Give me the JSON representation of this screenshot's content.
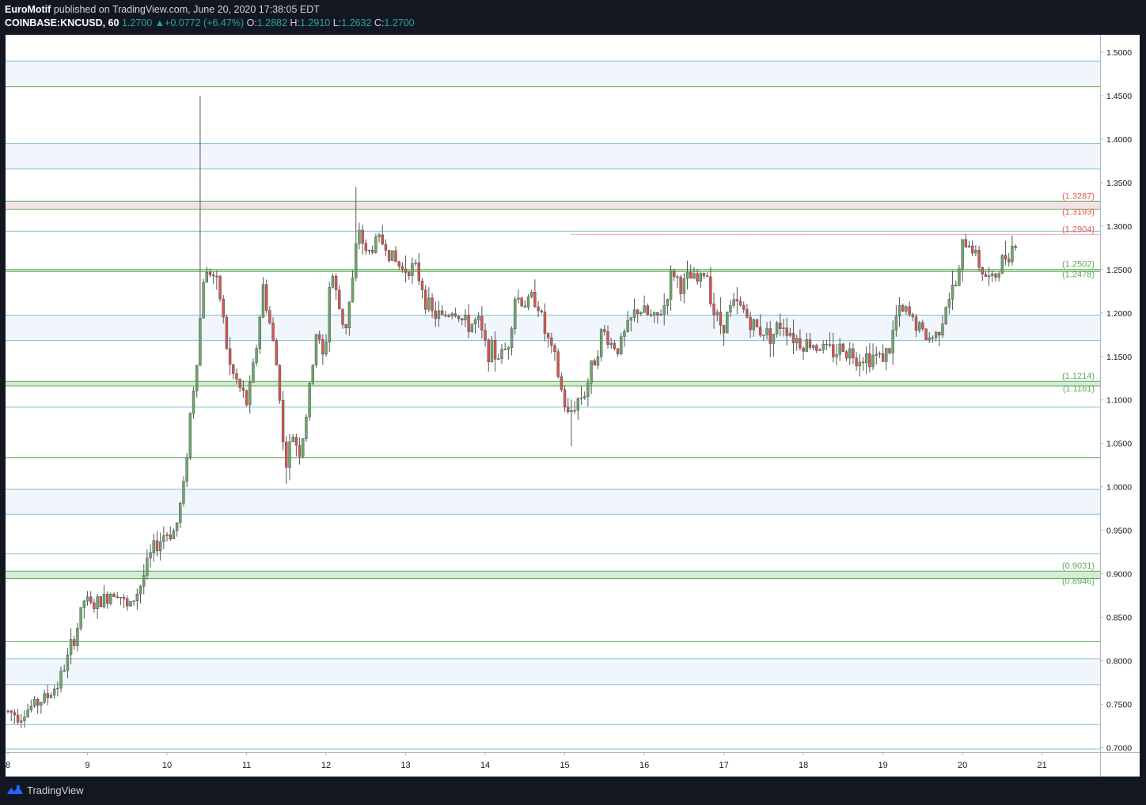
{
  "header": {
    "author": "EuroMotif",
    "published_text": "published on TradingView.com, June 20, 2020 17:38:05 EDT",
    "symbol": "COINBASE:KNCUSD, 60",
    "last": "1.2700",
    "change": "+0.0772 (+6.47%)",
    "o_label": "O:",
    "o_value": "1.2882",
    "h_label": "H:",
    "h_value": "1.2910",
    "l_label": "L:",
    "l_value": "1.2632",
    "c_label": "C:",
    "c_value": "1.2700"
  },
  "footer": {
    "brand": "TradingView",
    "logo_icon": "tradingview-logo-icon"
  },
  "colors": {
    "bull": "#26a69a",
    "bear": "#ef5350",
    "bull_body": "#6ca86a",
    "bear_body": "#d9534f",
    "hline_blue": "#7fbfd3",
    "hline_green": "#5fa858",
    "band_fill": "#f0f6fc",
    "zone_green": "#d4ecd3",
    "zone_red": "#efe3e3",
    "label_green": "#5fa858",
    "label_red": "#e05a54"
  },
  "chart_data": {
    "type": "candlestick",
    "symbol": "COINBASE:KNCUSD",
    "interval": "60",
    "ylim": [
      0.695,
      1.52
    ],
    "y_ticks": [
      "1.5000",
      "1.4500",
      "1.4000",
      "1.3500",
      "1.3000",
      "1.2500",
      "1.2000",
      "1.1500",
      "1.1000",
      "1.0500",
      "1.0000",
      "0.9500",
      "0.9000",
      "0.8500",
      "0.8000",
      "0.7500",
      "0.7000"
    ],
    "x_ticks": [
      {
        "label": "8",
        "day": 8
      },
      {
        "label": "9",
        "day": 9
      },
      {
        "label": "10",
        "day": 10
      },
      {
        "label": "11",
        "day": 11
      },
      {
        "label": "12",
        "day": 12
      },
      {
        "label": "13",
        "day": 13
      },
      {
        "label": "14",
        "day": 14
      },
      {
        "label": "15",
        "day": 15
      },
      {
        "label": "16",
        "day": 16
      },
      {
        "label": "17",
        "day": 17
      },
      {
        "label": "18",
        "day": 18
      },
      {
        "label": "19",
        "day": 19
      },
      {
        "label": "20",
        "day": 20
      },
      {
        "label": "21",
        "day": 21
      }
    ],
    "xlim_days": [
      7.97,
      21.73
    ],
    "green_lines": [
      1.4603,
      1.0336,
      0.822
    ],
    "blue_lines": [
      1.4897,
      1.3948,
      1.3656,
      1.2941,
      1.1975,
      1.1683,
      1.0917,
      0.9973,
      0.9686,
      0.9232,
      0.8024,
      0.7725,
      0.7266,
      0.6985
    ],
    "bands": [
      [
        1.4603,
        1.4897
      ],
      [
        1.3656,
        1.3948
      ],
      [
        1.1683,
        1.1975
      ],
      [
        0.9686,
        0.9973
      ],
      [
        0.7725,
        0.8024
      ]
    ],
    "zones": [
      {
        "top": 1.3287,
        "bottom": 1.3193,
        "color": "red",
        "labels": [
          "(1.3287)",
          "(1.3193)"
        ]
      },
      {
        "top": 1.2502,
        "bottom": 1.2478,
        "color": "green",
        "labels": [
          "(1.2502)",
          "(1.2478)"
        ]
      },
      {
        "top": 1.1214,
        "bottom": 1.1161,
        "color": "green",
        "labels": [
          "(1.1214)",
          "(1.1161)"
        ]
      },
      {
        "top": 0.9031,
        "bottom": 0.8946,
        "color": "green",
        "labels": [
          "(0.9031)",
          "(0.8946)"
        ]
      }
    ],
    "current_line": {
      "price": 1.2904,
      "label": "(1.2904)",
      "from_day": 15.08
    },
    "anchors": [
      [
        8.0,
        0.742
      ],
      [
        8.2,
        0.738
      ],
      [
        8.35,
        0.748
      ],
      [
        8.55,
        0.76
      ],
      [
        8.68,
        0.775
      ],
      [
        8.8,
        0.805
      ],
      [
        8.92,
        0.84
      ],
      [
        9.0,
        0.87
      ],
      [
        9.1,
        0.862
      ],
      [
        9.25,
        0.87
      ],
      [
        9.4,
        0.885
      ],
      [
        9.55,
        0.858
      ],
      [
        9.7,
        0.885
      ],
      [
        9.85,
        0.925
      ],
      [
        10.0,
        0.945
      ],
      [
        10.15,
        0.95
      ],
      [
        10.25,
        1.0
      ],
      [
        10.33,
        1.08
      ],
      [
        10.42,
        1.15
      ],
      [
        10.5,
        1.24
      ],
      [
        10.6,
        1.25
      ],
      [
        10.72,
        1.215
      ],
      [
        10.82,
        1.14
      ],
      [
        10.92,
        1.12
      ],
      [
        11.05,
        1.095
      ],
      [
        11.15,
        1.15
      ],
      [
        11.25,
        1.23
      ],
      [
        11.35,
        1.18
      ],
      [
        11.45,
        1.12
      ],
      [
        11.52,
        1.02
      ],
      [
        11.62,
        1.06
      ],
      [
        11.72,
        1.04
      ],
      [
        11.82,
        1.1
      ],
      [
        11.92,
        1.18
      ],
      [
        12.02,
        1.14
      ],
      [
        12.1,
        1.255
      ],
      [
        12.18,
        1.215
      ],
      [
        12.28,
        1.18
      ],
      [
        12.38,
        1.24
      ],
      [
        12.45,
        1.3
      ],
      [
        12.55,
        1.265
      ],
      [
        12.68,
        1.285
      ],
      [
        12.78,
        1.28
      ],
      [
        12.9,
        1.26
      ],
      [
        13.0,
        1.25
      ],
      [
        13.1,
        1.255
      ],
      [
        13.22,
        1.24
      ],
      [
        13.35,
        1.2
      ],
      [
        13.5,
        1.195
      ],
      [
        13.65,
        1.205
      ],
      [
        13.8,
        1.185
      ],
      [
        13.95,
        1.19
      ],
      [
        14.05,
        1.16
      ],
      [
        14.2,
        1.15
      ],
      [
        14.32,
        1.16
      ],
      [
        14.42,
        1.22
      ],
      [
        14.55,
        1.21
      ],
      [
        14.68,
        1.22
      ],
      [
        14.8,
        1.175
      ],
      [
        14.92,
        1.145
      ],
      [
        15.0,
        1.11
      ],
      [
        15.08,
        1.08
      ],
      [
        15.2,
        1.1
      ],
      [
        15.3,
        1.11
      ],
      [
        15.42,
        1.15
      ],
      [
        15.52,
        1.18
      ],
      [
        15.62,
        1.165
      ],
      [
        15.72,
        1.16
      ],
      [
        15.82,
        1.18
      ],
      [
        15.95,
        1.205
      ],
      [
        16.05,
        1.2
      ],
      [
        16.18,
        1.19
      ],
      [
        16.3,
        1.21
      ],
      [
        16.4,
        1.25
      ],
      [
        16.5,
        1.23
      ],
      [
        16.62,
        1.24
      ],
      [
        16.72,
        1.235
      ],
      [
        16.82,
        1.25
      ],
      [
        16.92,
        1.2
      ],
      [
        17.02,
        1.185
      ],
      [
        17.15,
        1.21
      ],
      [
        17.28,
        1.205
      ],
      [
        17.4,
        1.185
      ],
      [
        17.52,
        1.18
      ],
      [
        17.65,
        1.175
      ],
      [
        17.78,
        1.19
      ],
      [
        17.9,
        1.175
      ],
      [
        18.02,
        1.165
      ],
      [
        18.15,
        1.165
      ],
      [
        18.28,
        1.16
      ],
      [
        18.4,
        1.155
      ],
      [
        18.55,
        1.16
      ],
      [
        18.7,
        1.15
      ],
      [
        18.85,
        1.15
      ],
      [
        19.0,
        1.15
      ],
      [
        19.12,
        1.155
      ],
      [
        19.22,
        1.2
      ],
      [
        19.35,
        1.2
      ],
      [
        19.48,
        1.185
      ],
      [
        19.6,
        1.17
      ],
      [
        19.72,
        1.175
      ],
      [
        19.85,
        1.215
      ],
      [
        19.98,
        1.235
      ],
      [
        20.05,
        1.28
      ],
      [
        20.15,
        1.28
      ],
      [
        20.28,
        1.25
      ],
      [
        20.4,
        1.235
      ],
      [
        20.5,
        1.25
      ],
      [
        20.6,
        1.27
      ],
      [
        20.7,
        1.28
      ]
    ]
  }
}
